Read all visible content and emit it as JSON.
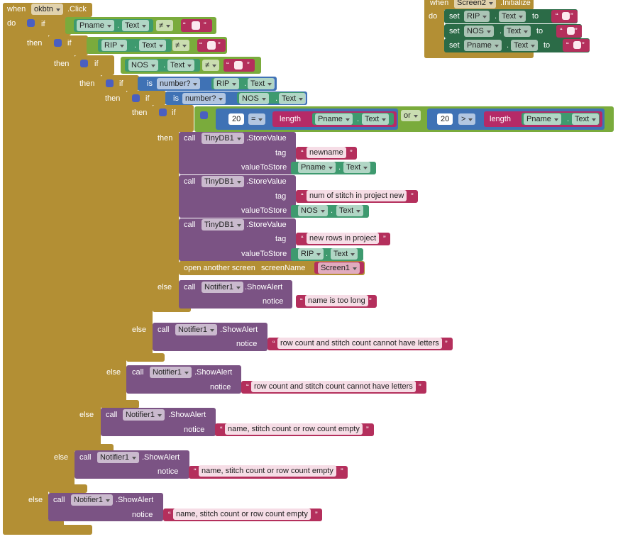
{
  "blocks": [
    [
      "when",
      "okbtn",
      ".Click",
      "do"
    ],
    [
      "if",
      "Pname",
      ".",
      "Text",
      "≠",
      "“",
      "”"
    ],
    [
      "then",
      "if",
      "RIP",
      ".",
      "Text",
      "≠",
      "“",
      "”"
    ],
    [
      "then",
      "if",
      "NOS",
      ".",
      "Text",
      "≠",
      "“",
      "”"
    ],
    [
      "then",
      "if",
      "is",
      "number?",
      "RIP",
      ".",
      "Text"
    ],
    [
      "then",
      "if",
      "is",
      "number?",
      "NOS",
      ".",
      "Text"
    ],
    [
      "then",
      "if",
      "20",
      "=",
      "length",
      "Pname",
      ".",
      "Text",
      "or",
      "20",
      ">",
      "length",
      "Pname",
      ".",
      "Text"
    ],
    [
      "then",
      "call",
      "TinyDB1",
      ".StoreValue",
      "tag",
      "“",
      "newname",
      "”",
      "valueToStore",
      "Pname",
      ".",
      "Text"
    ],
    [
      "call",
      "TinyDB1",
      ".StoreValue",
      "tag",
      "“",
      "num of stitch in project new",
      "”",
      "valueToStore",
      "NOS",
      ".",
      "Text"
    ],
    [
      "call",
      "TinyDB1",
      ".StoreValue",
      "tag",
      "“",
      "new rows in project",
      "”",
      "valueToStore",
      "RIP",
      ".",
      "Text"
    ],
    [
      "open another screen",
      "screenName",
      "Screen1"
    ],
    [
      "else",
      "call",
      "Notifier1",
      ".ShowAlert",
      "notice",
      "“",
      "name is too long",
      "”"
    ],
    [
      "else",
      "call",
      "Notifier1",
      ".ShowAlert",
      "notice",
      "“",
      "row count and stitch count cannot have letters",
      "”"
    ],
    [
      "else",
      "call",
      "Notifier1",
      ".ShowAlert",
      "notice",
      "“",
      "row count and stitch count cannot have letters",
      "”"
    ],
    [
      "else",
      "call",
      "Notifier1",
      ".ShowAlert",
      "notice",
      "“",
      "name, stitch count or row count empty",
      "”"
    ],
    [
      "else",
      "call",
      "Notifier1",
      ".ShowAlert",
      "notice",
      "“",
      "name, stitch count or row count empty",
      "”"
    ],
    [
      "else",
      "call",
      "Notifier1",
      ".ShowAlert",
      "notice",
      "“",
      "name, stitch count or row count empty",
      "”"
    ],
    [
      "when",
      "Screen2",
      ".Initialize",
      "do"
    ],
    [
      "set",
      "RIP",
      ".",
      "Text",
      "to",
      "“",
      "”"
    ],
    [
      "set",
      "NOS",
      ".",
      "Text",
      "to",
      "“",
      "”"
    ],
    [
      "set",
      "Pname",
      ".",
      "Text",
      "to",
      "“",
      "”"
    ]
  ]
}
